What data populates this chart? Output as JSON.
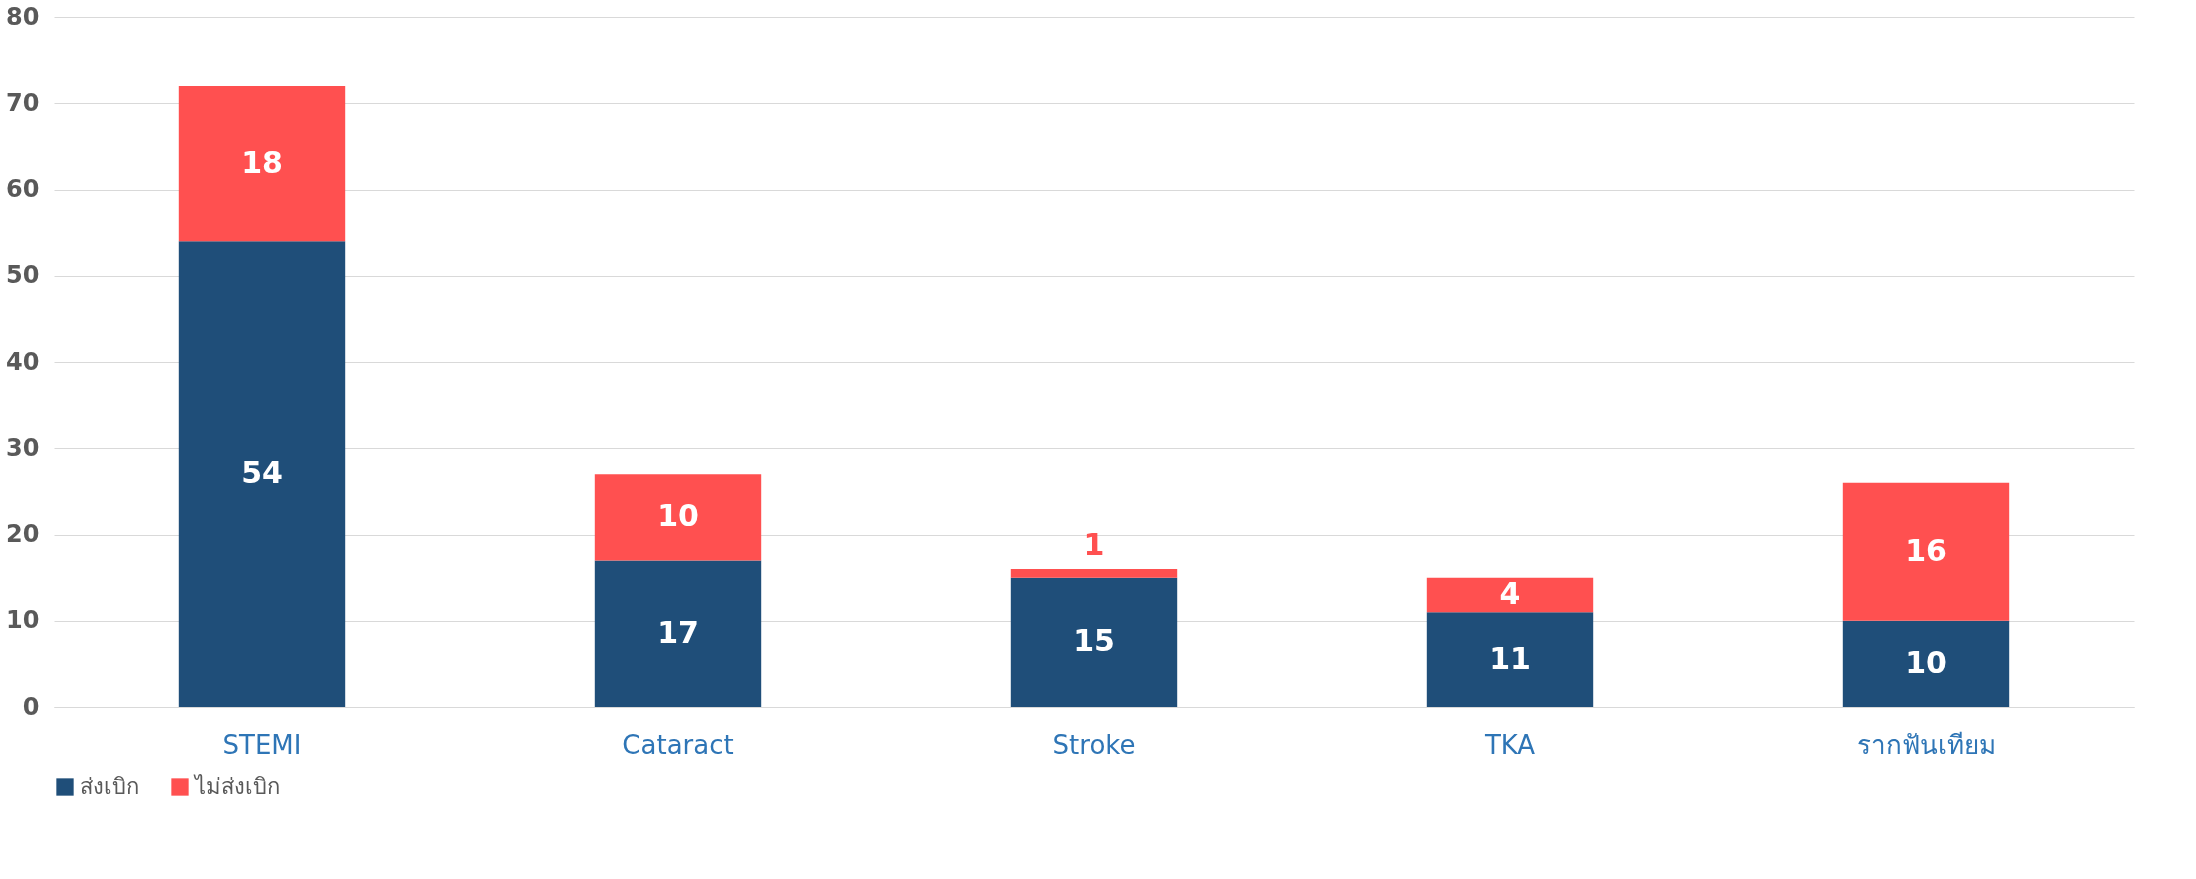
{
  "chart_data": {
    "type": "bar",
    "stacked": true,
    "categories": [
      "STEMI",
      "Cataract",
      "Stroke",
      "TKA",
      "รากฟันเทียม"
    ],
    "series": [
      {
        "name": "ส่งเบิก",
        "color": "#1f4e79",
        "values": [
          54,
          17,
          15,
          11,
          10
        ]
      },
      {
        "name": "ไม่ส่งเบิก",
        "color": "#ff5050",
        "values": [
          18,
          10,
          1,
          4,
          16
        ]
      }
    ],
    "ylim": [
      0,
      80
    ],
    "yticks": [
      0,
      10,
      20,
      30,
      40,
      50,
      60,
      70,
      80
    ],
    "grid": "y",
    "legend": "bottom",
    "data_labels": true
  }
}
